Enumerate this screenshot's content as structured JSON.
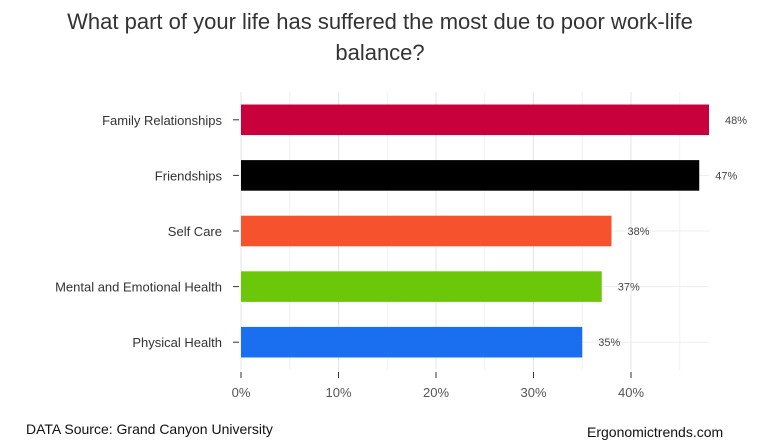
{
  "chart_data": {
    "type": "bar",
    "orientation": "horizontal",
    "title": "What part of your life has suffered the most due to poor work-life balance?",
    "categories": [
      "Family Relationships",
      "Friendships",
      "Self Care",
      "Mental and Emotional Health",
      "Physical Health"
    ],
    "values": [
      48,
      47,
      38,
      37,
      35
    ],
    "value_labels": [
      "48%",
      "47%",
      "38%",
      "37%",
      "35%"
    ],
    "colors": [
      "#c8003c",
      "#000000",
      "#f5522d",
      "#6cc70a",
      "#1a6ff0"
    ],
    "xlim": [
      0,
      48
    ],
    "xticks": [
      0,
      10,
      20,
      30,
      40
    ],
    "xtick_labels": [
      "0%",
      "10%",
      "20%",
      "30%",
      "40%"
    ],
    "xlabel": "",
    "ylabel": "",
    "grid": true
  },
  "footer": {
    "source": "DATA Source: Grand Canyon University",
    "site": "Ergonomictrends.com"
  }
}
